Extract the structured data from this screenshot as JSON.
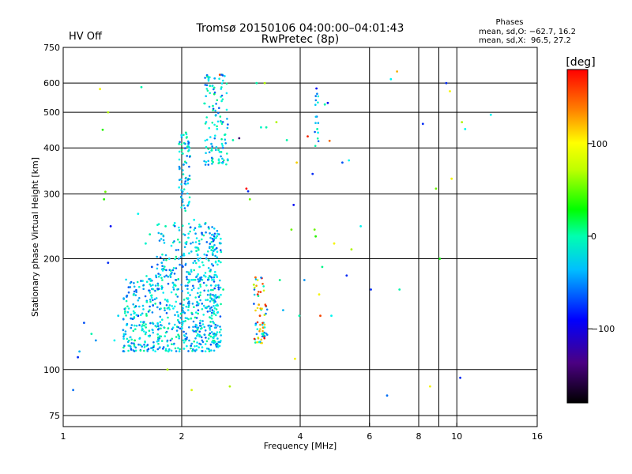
{
  "status_label": "HV Off",
  "status_color": "#cc0000",
  "chart_data": {
    "type": "scatter",
    "title": "Tromsø 20150106 04:00:00–04:01:43",
    "subtitle": "RwPretec (8p)",
    "xlabel": "Frequency [MHz]",
    "ylabel": "Stationary phase Virtual Height [km]",
    "x_scale": "log",
    "y_scale": "log",
    "xlim": [
      1,
      16
    ],
    "ylim": [
      70,
      750
    ],
    "x_ticks": [
      1,
      2,
      4,
      6,
      8,
      10,
      16
    ],
    "x_grid": [
      1,
      2,
      4,
      6,
      8,
      9,
      10,
      16
    ],
    "y_ticks": [
      75,
      100,
      200,
      300,
      400,
      500,
      600,
      750
    ],
    "grid": true,
    "stats": {
      "title": "Phases",
      "line1": "mean, sd,O: −62.7, 16.2",
      "line2": "mean, sd,X:  96.5, 27.2"
    },
    "colorbar": {
      "label": "[deg]",
      "min": -180,
      "max": 180,
      "ticks": [
        100,
        0,
        -100
      ]
    },
    "series": [
      {
        "name": "echoes",
        "points": [
          [
            1.06,
            88,
            -100
          ],
          [
            1.09,
            108,
            -120
          ],
          [
            1.1,
            112,
            -80
          ],
          [
            1.13,
            134,
            -110
          ],
          [
            1.18,
            125,
            -40
          ],
          [
            1.21,
            120,
            -90
          ],
          [
            1.24,
            578,
            80
          ],
          [
            1.26,
            448,
            20
          ],
          [
            1.28,
            304,
            40
          ],
          [
            1.27,
            290,
            20
          ],
          [
            1.3,
            500,
            60
          ],
          [
            1.32,
            245,
            -130
          ],
          [
            1.3,
            195,
            -120
          ],
          [
            1.35,
            120,
            -60
          ],
          [
            1.38,
            140,
            -70
          ],
          [
            1.42,
            128,
            -90
          ],
          [
            1.45,
            132,
            -60
          ],
          [
            1.52,
            120,
            -20
          ],
          [
            1.55,
            140,
            -120
          ],
          [
            1.58,
            585,
            -40
          ],
          [
            1.55,
            265,
            -60
          ],
          [
            1.62,
            220,
            -50
          ],
          [
            1.66,
            233,
            -40
          ],
          [
            1.68,
            190,
            -110
          ],
          [
            1.72,
            180,
            -60
          ],
          [
            1.74,
            165,
            -40
          ],
          [
            1.78,
            195,
            -80
          ],
          [
            1.82,
            245,
            -40
          ],
          [
            1.84,
            100,
            60
          ],
          [
            1.86,
            200,
            -70
          ],
          [
            1.88,
            182,
            -90
          ],
          [
            1.9,
            172,
            -80
          ],
          [
            1.92,
            250,
            -60
          ],
          [
            1.95,
            165,
            -50
          ],
          [
            1.97,
            410,
            -40
          ],
          [
            2.0,
            395,
            -30
          ],
          [
            2.03,
            412,
            -40
          ],
          [
            2.05,
            440,
            -30
          ],
          [
            2.08,
            228,
            -60
          ],
          [
            2.1,
            380,
            -40
          ],
          [
            2.12,
            88,
            70
          ],
          [
            2.15,
            255,
            -60
          ],
          [
            2.18,
            210,
            -40
          ],
          [
            2.2,
            200,
            -80
          ],
          [
            2.22,
            190,
            -60
          ],
          [
            2.25,
            235,
            -110
          ],
          [
            2.28,
            180,
            -70
          ],
          [
            2.3,
            250,
            -40
          ],
          [
            2.32,
            630,
            -100
          ],
          [
            2.34,
            615,
            -60
          ],
          [
            2.36,
            590,
            -40
          ],
          [
            2.38,
            410,
            -80
          ],
          [
            2.4,
            520,
            -40
          ],
          [
            2.42,
            560,
            -20
          ],
          [
            2.44,
            490,
            -50
          ],
          [
            2.46,
            450,
            -60
          ],
          [
            2.48,
            395,
            -40
          ],
          [
            2.5,
            632,
            130
          ],
          [
            2.52,
            390,
            -40
          ],
          [
            2.55,
            165,
            -30
          ],
          [
            2.58,
            435,
            -40
          ],
          [
            2.62,
            370,
            -40
          ],
          [
            2.65,
            90,
            60
          ],
          [
            2.7,
            420,
            -40
          ],
          [
            2.8,
            425,
            -150
          ],
          [
            2.92,
            310,
            170
          ],
          [
            2.95,
            305,
            -120
          ],
          [
            2.98,
            290,
            40
          ],
          [
            3.05,
            170,
            60
          ],
          [
            3.08,
            178,
            120
          ],
          [
            3.1,
            600,
            -40
          ],
          [
            3.12,
            160,
            140
          ],
          [
            3.14,
            150,
            100
          ],
          [
            3.16,
            140,
            130
          ],
          [
            3.18,
            455,
            -50
          ],
          [
            3.2,
            125,
            -60
          ],
          [
            3.22,
            130,
            110
          ],
          [
            3.25,
            600,
            60
          ],
          [
            3.28,
            455,
            -40
          ],
          [
            3.48,
            470,
            60
          ],
          [
            3.55,
            175,
            -30
          ],
          [
            3.62,
            145,
            -80
          ],
          [
            3.7,
            420,
            -40
          ],
          [
            3.8,
            240,
            40
          ],
          [
            3.85,
            280,
            -130
          ],
          [
            3.88,
            107,
            80
          ],
          [
            3.92,
            365,
            90
          ],
          [
            3.98,
            140,
            -40
          ],
          [
            4.1,
            175,
            -90
          ],
          [
            4.18,
            430,
            140
          ],
          [
            4.3,
            340,
            -120
          ],
          [
            4.35,
            240,
            40
          ],
          [
            4.38,
            230,
            20
          ],
          [
            4.4,
            580,
            -130
          ],
          [
            4.42,
            450,
            -40
          ],
          [
            4.44,
            440,
            -60
          ],
          [
            4.47,
            160,
            80
          ],
          [
            4.5,
            140,
            130
          ],
          [
            4.55,
            190,
            -30
          ],
          [
            4.62,
            525,
            -40
          ],
          [
            4.7,
            530,
            -130
          ],
          [
            4.75,
            418,
            120
          ],
          [
            4.8,
            140,
            -60
          ],
          [
            4.88,
            220,
            80
          ],
          [
            5.12,
            365,
            -110
          ],
          [
            5.25,
            180,
            -120
          ],
          [
            5.32,
            370,
            -60
          ],
          [
            5.4,
            212,
            60
          ],
          [
            5.7,
            245,
            -60
          ],
          [
            6.05,
            165,
            -120
          ],
          [
            6.65,
            85,
            -100
          ],
          [
            6.8,
            615,
            -60
          ],
          [
            7.05,
            645,
            100
          ],
          [
            7.15,
            165,
            -40
          ],
          [
            8.2,
            465,
            -120
          ],
          [
            8.55,
            90,
            80
          ],
          [
            8.85,
            310,
            40
          ],
          [
            9.05,
            200,
            10
          ],
          [
            9.4,
            600,
            -120
          ],
          [
            9.6,
            570,
            80
          ],
          [
            9.7,
            330,
            80
          ],
          [
            10.2,
            95,
            -120
          ],
          [
            10.3,
            470,
            60
          ],
          [
            10.5,
            450,
            -60
          ],
          [
            12.2,
            492,
            -60
          ]
        ],
        "cluster": "dense O-mode trace 1.4–2.6 MHz, 112–250 km, phase ≈ −90…−40"
      }
    ]
  }
}
